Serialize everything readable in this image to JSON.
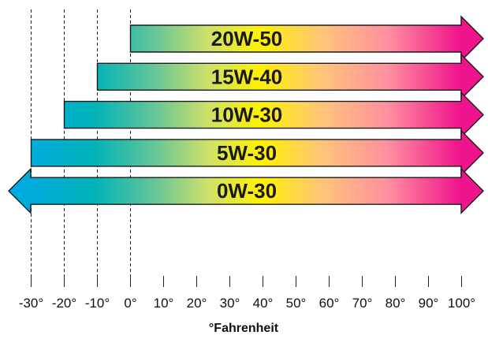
{
  "chart_data": {
    "type": "bar",
    "orientation": "horizontal",
    "xlabel": "°Fahrenheit",
    "xlim": [
      -30,
      100
    ],
    "x_ticks": [
      -30,
      -20,
      -10,
      0,
      10,
      20,
      30,
      40,
      50,
      60,
      70,
      80,
      90,
      100
    ],
    "x_tick_labels": [
      "-30°",
      "-20°",
      "-10°",
      "0°",
      "10°",
      "20°",
      "30°",
      "40°",
      "50°",
      "60°",
      "70°",
      "80°",
      "90°",
      "100°"
    ],
    "dashed_gridlines_at": [
      -30,
      -20,
      -10,
      0
    ],
    "categories": [
      "20W-50",
      "15W-40",
      "10W-30",
      "5W-30",
      "0W-30"
    ],
    "ranges": [
      {
        "label": "20W-50",
        "start": 0,
        "end": 100,
        "open_below": false,
        "open_above": true
      },
      {
        "label": "15W-40",
        "start": -10,
        "end": 100,
        "open_below": false,
        "open_above": true
      },
      {
        "label": "10W-30",
        "start": -20,
        "end": 100,
        "open_below": false,
        "open_above": true
      },
      {
        "label": "5W-30",
        "start": -30,
        "end": 100,
        "open_below": false,
        "open_above": true
      },
      {
        "label": "0W-30",
        "start": -30,
        "end": 100,
        "open_below": true,
        "open_above": true
      }
    ],
    "gradient_colors": [
      "#00a9e8",
      "#00b3b8",
      "#5ec49a",
      "#cfe06a",
      "#fff200",
      "#ffc47a",
      "#ff8fa0",
      "#f0148c"
    ]
  }
}
